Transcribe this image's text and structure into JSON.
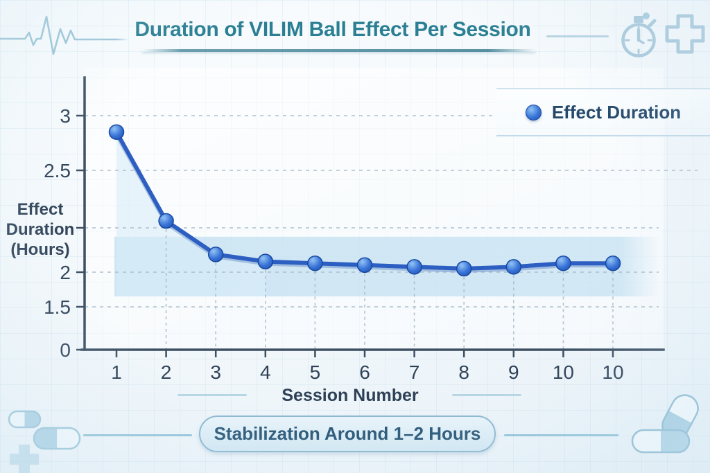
{
  "header": {
    "title": "Duration of VILIM Ball Effect Per Session",
    "decoration_icons": [
      "ekg-waveform",
      "stopwatch",
      "medical-cross"
    ]
  },
  "chart_data": {
    "type": "line",
    "title": "Duration of VILIM Ball Effect Per Session",
    "xlabel": "Session Number",
    "ylabel": "Effect Duration (Hours)",
    "x_tick_labels": [
      "1",
      "2",
      "3",
      "4",
      "5",
      "6",
      "7",
      "8",
      "9",
      "10",
      "10"
    ],
    "y_ticks": [
      {
        "label": "3",
        "value": 3
      },
      {
        "label": "2.5",
        "value": 2.5
      },
      {
        "label": "",
        "value": 2.25
      },
      {
        "label": "2",
        "value": 2
      },
      {
        "label": "1.5",
        "value": 1.5
      },
      {
        "label": "0",
        "value": 0
      }
    ],
    "ylim": [
      0,
      3
    ],
    "grid": "dashed",
    "series": [
      {
        "name": "Effect Duration",
        "values": [
          2.85,
          2.28,
          2.1,
          2.06,
          2.05,
          2.04,
          2.03,
          2.02,
          2.03,
          2.05,
          2.05
        ]
      }
    ],
    "legend": {
      "position": "top-right",
      "entries": [
        "Effect Duration"
      ]
    },
    "stabilization_band": {
      "from": 1.65,
      "to": 2.2
    },
    "annotation": "Stabilization Around 1–2 Hours"
  },
  "footer": {
    "banner": "Stabilization Around 1–2 Hours",
    "decoration_icons": [
      "capsule",
      "capsule",
      "medical-plus",
      "capsule",
      "capsule"
    ]
  },
  "colors": {
    "accent_teal": "#2a7f93",
    "axis_text": "#2e4156",
    "axis_line": "#3c4f63",
    "line_blue": "#2d5fc2",
    "marker_blue": "#2a66cc",
    "band_blue": "#bcdcf0",
    "area_blue": "#d9ecf8",
    "gridline": "#a6bac9",
    "icon_blue": "#a9c9db",
    "banner_text": "#2b5878",
    "banner_border": "#8cb8d0"
  }
}
